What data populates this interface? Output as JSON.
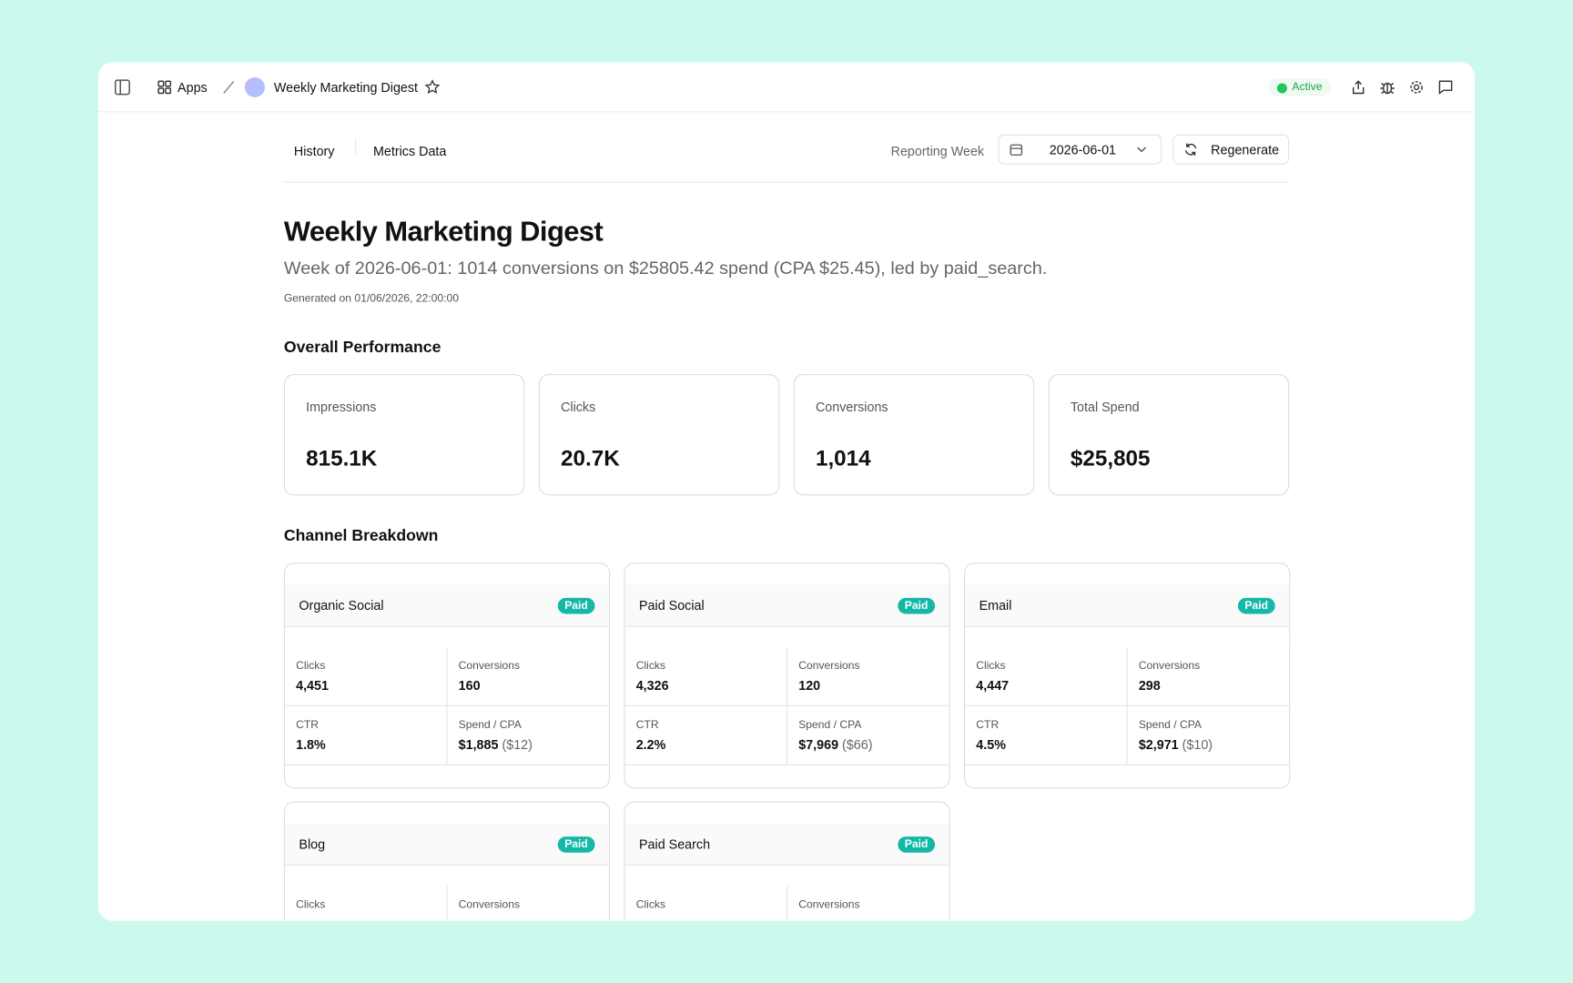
{
  "header": {
    "apps": "Apps",
    "title": "Weekly Marketing Digest",
    "status": "Active"
  },
  "toolbar": {
    "tabs": [
      "History",
      "Metrics Data"
    ],
    "week_label": "Reporting Week",
    "week": "2026-06-01",
    "regenerate": "Regenerate"
  },
  "digest": {
    "title": "Weekly Marketing Digest",
    "summary": "Week of 2026-06-01: 1014 conversions on $25805.42 spend (CPA $25.45), led by paid_search.",
    "generated": "Generated on 01/06/2026, 22:00:00"
  },
  "overall": {
    "heading": "Overall Performance",
    "metrics": [
      {
        "label": "Impressions",
        "value": "815.1K"
      },
      {
        "label": "Clicks",
        "value": "20.7K"
      },
      {
        "label": "Conversions",
        "value": "1,014"
      },
      {
        "label": "Total Spend",
        "value": "$25,805"
      }
    ]
  },
  "channels": {
    "heading": "Channel Breakdown",
    "items": [
      {
        "name": "Organic Social",
        "badge": "Paid",
        "stats": [
          {
            "label": "Clicks",
            "value": "4,451"
          },
          {
            "label": "Conversions",
            "value": "160"
          },
          {
            "label": "CTR",
            "value": "1.8%"
          },
          {
            "label": "Spend / CPA",
            "value": "$1,885",
            "note": "($12)"
          }
        ]
      },
      {
        "name": "Paid Social",
        "badge": "Paid",
        "stats": [
          {
            "label": "Clicks",
            "value": "4,326"
          },
          {
            "label": "Conversions",
            "value": "120"
          },
          {
            "label": "CTR",
            "value": "2.2%"
          },
          {
            "label": "Spend / CPA",
            "value": "$7,969",
            "note": "($66)"
          }
        ]
      },
      {
        "name": "Email",
        "badge": "Paid",
        "stats": [
          {
            "label": "Clicks",
            "value": "4,447"
          },
          {
            "label": "Conversions",
            "value": "298"
          },
          {
            "label": "CTR",
            "value": "4.5%"
          },
          {
            "label": "Spend / CPA",
            "value": "$2,971",
            "note": "($10)"
          }
        ]
      },
      {
        "name": "Blog",
        "badge": "Paid",
        "stats": [
          {
            "label": "Clicks"
          },
          {
            "label": "Conversions"
          }
        ]
      },
      {
        "name": "Paid Search",
        "badge": "Paid",
        "stats": [
          {
            "label": "Clicks"
          },
          {
            "label": "Conversions"
          }
        ]
      }
    ]
  }
}
